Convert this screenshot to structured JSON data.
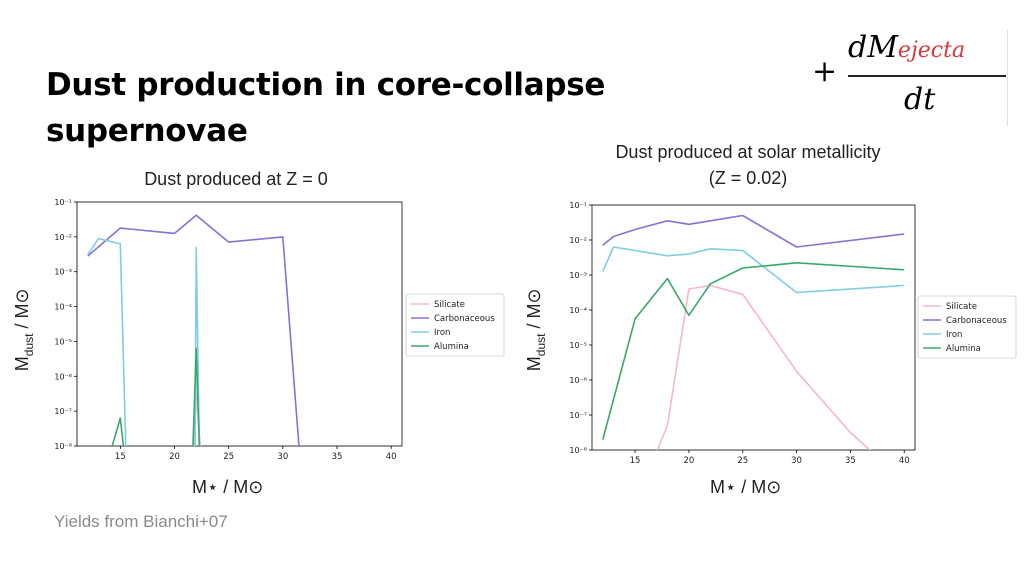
{
  "slide": {
    "title": "Dust production in core-collapse supernovae",
    "formula": {
      "plus": "+",
      "numerator_base": "dM",
      "numerator_sub": "ejecta",
      "denominator": "dt"
    },
    "footer": "Yields from Bianchi+07"
  },
  "left_panel": {
    "caption": "Dust produced at Z = 0",
    "xlabel_main": "M⋆ / M⊙",
    "ylabel_main": "M",
    "ylabel_sub": "dust",
    "ylabel_tail": " / M⊙"
  },
  "right_panel": {
    "caption": "Dust produced at solar metallicity (Z = 0.02)",
    "xlabel_main": "M⋆ / M⊙",
    "ylabel_main": "M",
    "ylabel_sub": "dust",
    "ylabel_tail": " / M⊙"
  },
  "colors": {
    "Silicate": "#f5b8c4",
    "Carbonaceous": "#8a70d6",
    "Iron": "#7ecde3",
    "Alumina": "#3aa86b"
  },
  "chart_data": [
    {
      "type": "line",
      "title": "Dust produced at Z = 0",
      "xlabel": "M⋆ / M⊙",
      "ylabel": "Mdust / M⊙",
      "yscale": "log",
      "xlim": [
        11,
        41
      ],
      "ylim_exp": [
        -8,
        -1
      ],
      "xticks": [
        15,
        20,
        25,
        30,
        35,
        40
      ],
      "yticks": [
        "10⁻¹",
        "10⁻²",
        "10⁻³",
        "10⁻⁴",
        "10⁻⁵",
        "10⁻⁶",
        "10⁻⁷",
        "10⁻⁸"
      ],
      "legend_position": "right",
      "series": [
        {
          "name": "Silicate",
          "x": [
            21.8,
            22,
            22.4
          ],
          "log10": [
            -9,
            -6.5,
            -9
          ]
        },
        {
          "name": "Carbonaceous",
          "x": [
            12,
            15,
            20,
            22,
            25,
            30,
            31.5
          ],
          "log10": [
            -2.55,
            -1.75,
            -1.9,
            -1.38,
            -2.15,
            -2.0,
            -9
          ]
        },
        {
          "name": "Iron",
          "x": [
            12,
            13,
            15,
            15.5,
            21.9,
            22,
            22.3
          ],
          "log10": [
            -2.5,
            -2.05,
            -2.2,
            -9,
            -9,
            -2.3,
            -9
          ]
        },
        {
          "name": "Alumina",
          "x": [
            14.2,
            15,
            15.3,
            21.7,
            22,
            22.3
          ],
          "log10": [
            -9,
            -7.2,
            -9,
            -9,
            -5.2,
            -9
          ]
        }
      ]
    },
    {
      "type": "line",
      "title": "Dust produced at solar metallicity (Z = 0.02)",
      "xlabel": "M⋆ / M⊙",
      "ylabel": "Mdust / M⊙",
      "yscale": "log",
      "xlim": [
        11,
        41
      ],
      "ylim_exp": [
        -8,
        -1
      ],
      "xticks": [
        15,
        20,
        25,
        30,
        35,
        40
      ],
      "yticks": [
        "10⁻¹",
        "10⁻²",
        "10⁻³",
        "10⁻⁴",
        "10⁻⁵",
        "10⁻⁶",
        "10⁻⁷",
        "10⁻⁸"
      ],
      "legend_position": "right",
      "series": [
        {
          "name": "Silicate",
          "x": [
            17,
            18,
            20,
            22,
            25,
            30,
            35,
            37
          ],
          "log10": [
            -8.2,
            -7.3,
            -3.4,
            -3.3,
            -3.55,
            -5.75,
            -7.5,
            -8.1
          ]
        },
        {
          "name": "Carbonaceous",
          "x": [
            12,
            13,
            15,
            18,
            20,
            22,
            25,
            30,
            40
          ],
          "log10": [
            -2.15,
            -1.9,
            -1.7,
            -1.45,
            -1.55,
            -1.45,
            -1.3,
            -2.2,
            -1.83
          ]
        },
        {
          "name": "Iron",
          "x": [
            12,
            13,
            15,
            18,
            20,
            22,
            25,
            30,
            40
          ],
          "log10": [
            -2.9,
            -2.2,
            -2.3,
            -2.45,
            -2.4,
            -2.25,
            -2.3,
            -3.5,
            -3.3
          ]
        },
        {
          "name": "Alumina",
          "x": [
            12,
            15,
            18,
            20,
            22,
            25,
            30,
            40
          ],
          "log10": [
            -7.7,
            -4.25,
            -3.1,
            -4.15,
            -3.25,
            -2.8,
            -2.65,
            -2.85
          ]
        }
      ]
    }
  ]
}
